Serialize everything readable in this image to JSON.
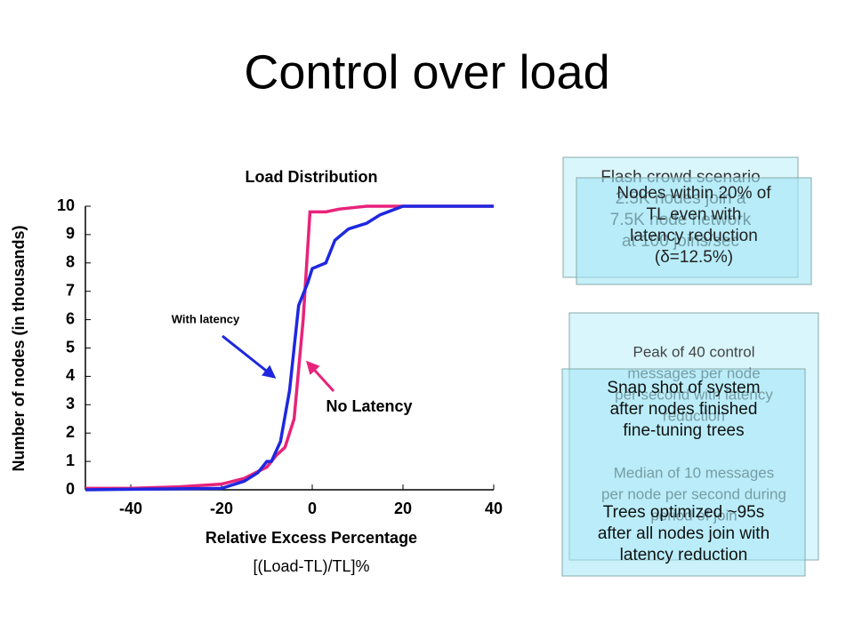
{
  "title": "Control over load",
  "chart_data": {
    "type": "line",
    "title": "Load Distribution",
    "x_label": "Relative Excess Percentage",
    "x_sublabel": "[(Load-TL)/TL]%",
    "y_label": "Number of nodes (in thousands)",
    "xlim": [
      -50,
      40
    ],
    "ylim": [
      0,
      10
    ],
    "xticks": [
      -40,
      -20,
      0,
      20,
      40
    ],
    "yticks": [
      0,
      1,
      2,
      3,
      4,
      5,
      6,
      7,
      8,
      9,
      10
    ],
    "series": [
      {
        "name": "No Latency",
        "color": "#e8237a",
        "x": [
          -50,
          -40,
          -30,
          -20,
          -15,
          -10,
          -8,
          -6,
          -4,
          -2,
          -0.5,
          0,
          3,
          6,
          12,
          20,
          40
        ],
        "values": [
          0.05,
          0.05,
          0.1,
          0.2,
          0.4,
          0.8,
          1.2,
          1.5,
          2.5,
          6,
          9.8,
          9.8,
          9.8,
          9.9,
          10,
          10,
          10
        ]
      },
      {
        "name": "With latency",
        "color": "#1e28e0",
        "x": [
          -50,
          -20,
          -15,
          -12,
          -10,
          -9,
          -7,
          -5,
          -4,
          -3,
          -1,
          0,
          3,
          5,
          8,
          12,
          15,
          20,
          40
        ],
        "values": [
          0,
          0.05,
          0.3,
          0.6,
          1.0,
          1.0,
          1.7,
          3.5,
          5.0,
          6.5,
          7.3,
          7.8,
          8.0,
          8.8,
          9.2,
          9.4,
          9.7,
          10,
          10
        ]
      }
    ]
  },
  "boxes": [
    {
      "paragraphs": [
        [
          "Flash crowd scenario",
          "2.5K nodes join a",
          "7.5K node network",
          "at 100 joins/sec"
        ]
      ]
    },
    {
      "paragraphs": [
        [
          "Nodes within 20% of",
          "TL even with",
          "latency reduction",
          "(δ=12.5%)"
        ]
      ]
    },
    {
      "paragraphs": [
        [
          "Peak of 40 control",
          "messages per node",
          "per second with latency",
          "reduction"
        ],
        [
          "Median of 10 messages",
          "per node per second during",
          "period of join"
        ]
      ]
    },
    {
      "paragraphs": [
        [
          "Snap shot of system",
          "after nodes finished",
          "fine-tuning trees"
        ],
        [
          "Trees optimized ~95s",
          "after all nodes join with",
          "latency reduction"
        ]
      ]
    }
  ]
}
